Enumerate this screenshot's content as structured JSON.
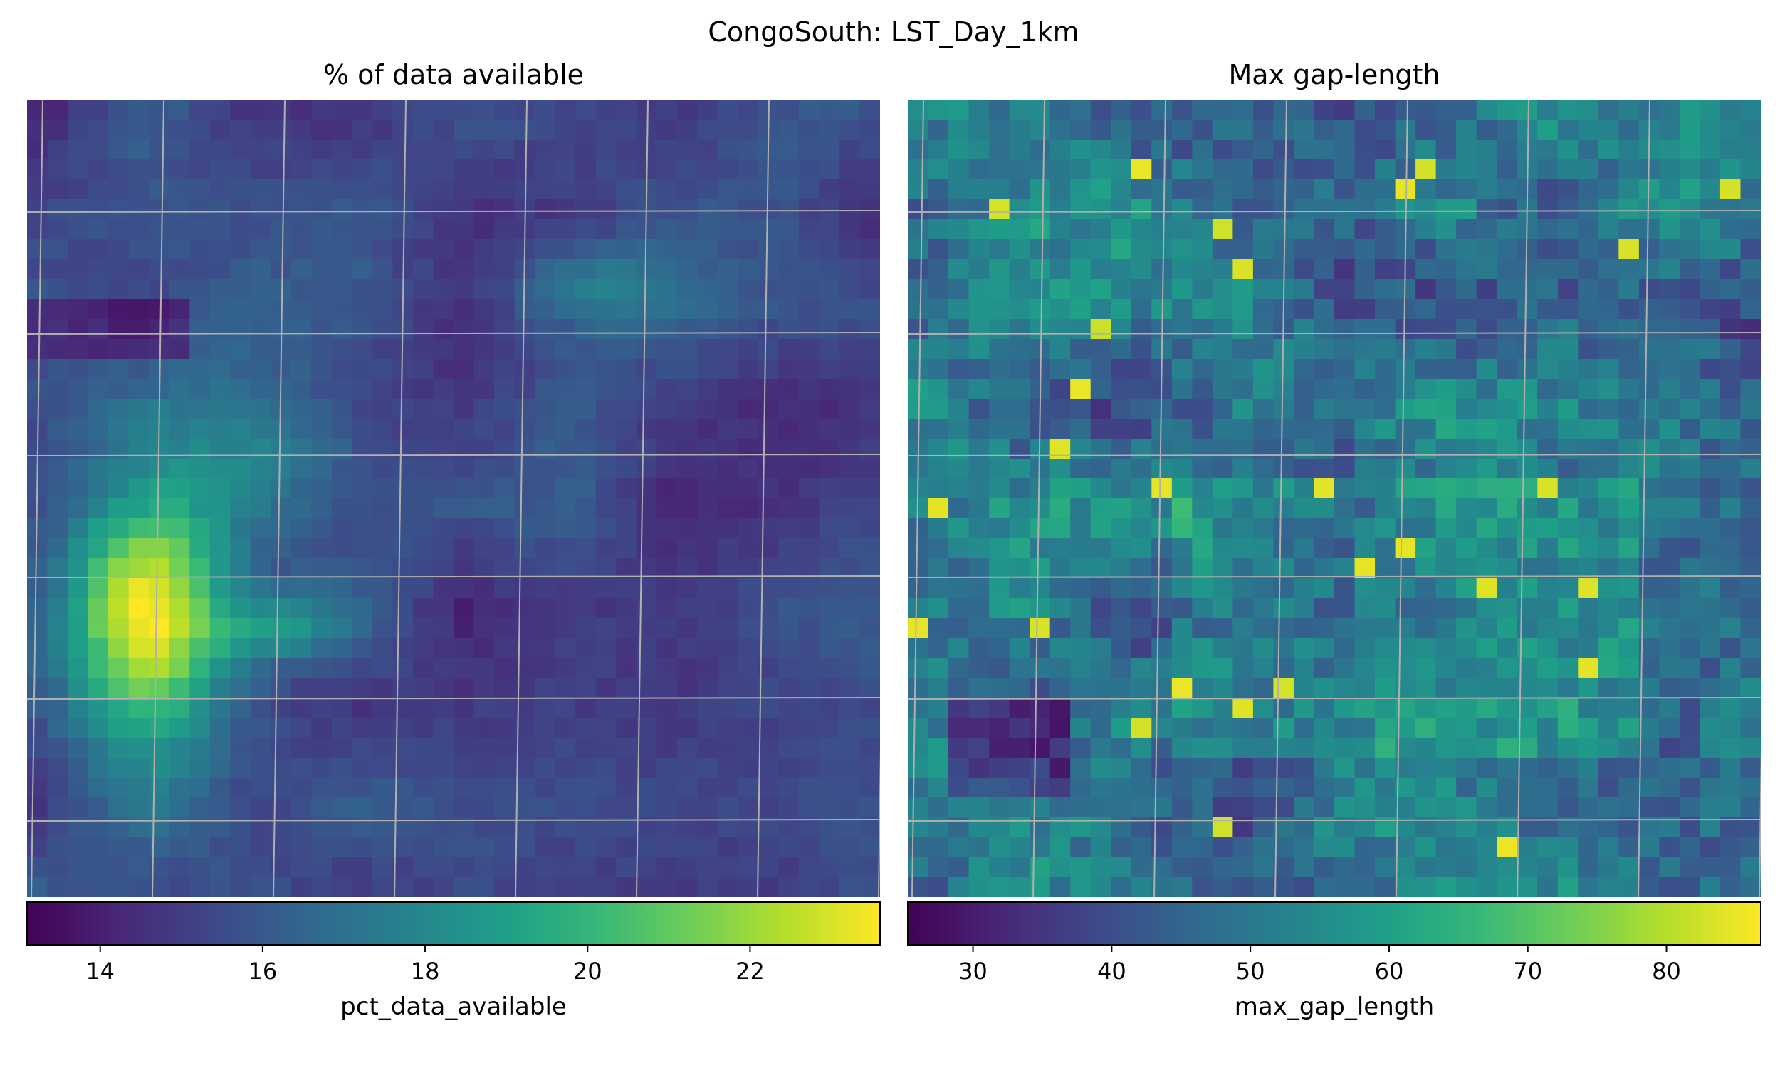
{
  "figure": {
    "suptitle": "CongoSouth: LST_Day_1km"
  },
  "chart_data": [
    {
      "type": "heatmap",
      "title": "% of data available",
      "colorbar_label": "pct_data_available",
      "colormap": "viridis",
      "grid": true,
      "value_range": [
        13.1,
        23.6
      ],
      "colorbar_ticks": [
        "14",
        "16",
        "18",
        "20",
        "22"
      ],
      "grid_rows": 40,
      "grid_cols": 42,
      "hotspots": [
        {
          "row": 25.5,
          "col": 5.5,
          "sx": 2.8,
          "sy": 4.8,
          "amp": 8.6
        },
        {
          "row": 26.0,
          "col": 12.0,
          "sx": 2.2,
          "sy": 1.2,
          "amp": 3.4
        },
        {
          "row": 9.0,
          "col": 27.0,
          "sx": 3.0,
          "sy": 1.4,
          "amp": 2.2
        },
        {
          "row": 17.0,
          "col": 12.0,
          "sx": 3.5,
          "sy": 2.0,
          "amp": 1.3
        }
      ],
      "baseline": 15.3
    },
    {
      "type": "heatmap",
      "title": "Max gap-length",
      "colorbar_label": "max_gap_length",
      "colormap": "viridis",
      "grid": true,
      "value_range": [
        25.3,
        86.8
      ],
      "colorbar_ticks": [
        "30",
        "40",
        "50",
        "60",
        "70",
        "80"
      ],
      "grid_rows": 40,
      "grid_cols": 42,
      "baseline": 47
    }
  ],
  "colors": {
    "viridis": [
      "#440154",
      "#482878",
      "#3e4989",
      "#31688e",
      "#26828e",
      "#1f9e89",
      "#35b779",
      "#6ece58",
      "#b5de2b",
      "#fde725"
    ],
    "gridline": "#b0b0b0"
  }
}
